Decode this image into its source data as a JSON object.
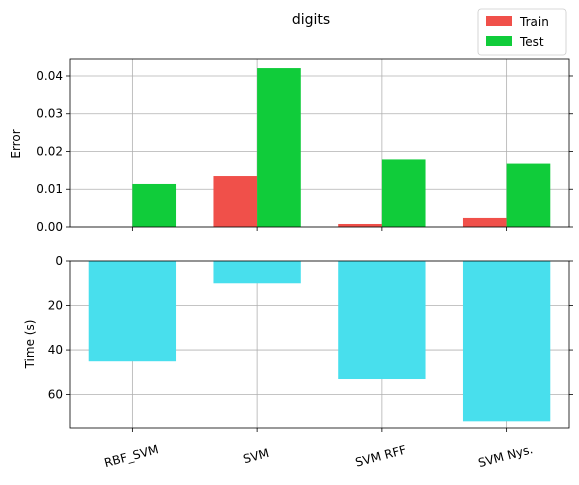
{
  "chart_data": [
    {
      "type": "bar",
      "title": "digits",
      "xlabel": "",
      "ylabel": "Error",
      "categories": [
        "RBF_SVM",
        "SVM",
        "SVM RFF",
        "SVM Nys."
      ],
      "series": [
        {
          "name": "Train",
          "color": "#f0504a",
          "values": [
            0.0,
            0.0135,
            0.0008,
            0.0024
          ]
        },
        {
          "name": "Test",
          "color": "#10cc3a",
          "values": [
            0.0114,
            0.0421,
            0.0179,
            0.0168
          ]
        }
      ],
      "ylim": [
        0,
        0.0445
      ],
      "yticks": [
        0.0,
        0.01,
        0.02,
        0.03,
        0.04
      ],
      "ytick_labels": [
        "0.00",
        "0.01",
        "0.02",
        "0.03",
        "0.04"
      ],
      "grid": true,
      "legend": "top-right"
    },
    {
      "type": "bar",
      "xlabel": "",
      "ylabel": "Time (s)",
      "categories": [
        "RBF_SVM",
        "SVM",
        "SVM RFF",
        "SVM Nys."
      ],
      "series": [
        {
          "color": "#48dfed",
          "values": [
            45,
            10,
            53,
            72
          ]
        }
      ],
      "ylim": [
        0,
        75
      ],
      "y_inverted": true,
      "yticks": [
        0,
        20,
        40,
        60
      ],
      "ytick_labels": [
        "0",
        "20",
        "40",
        "60"
      ],
      "grid": true
    }
  ]
}
